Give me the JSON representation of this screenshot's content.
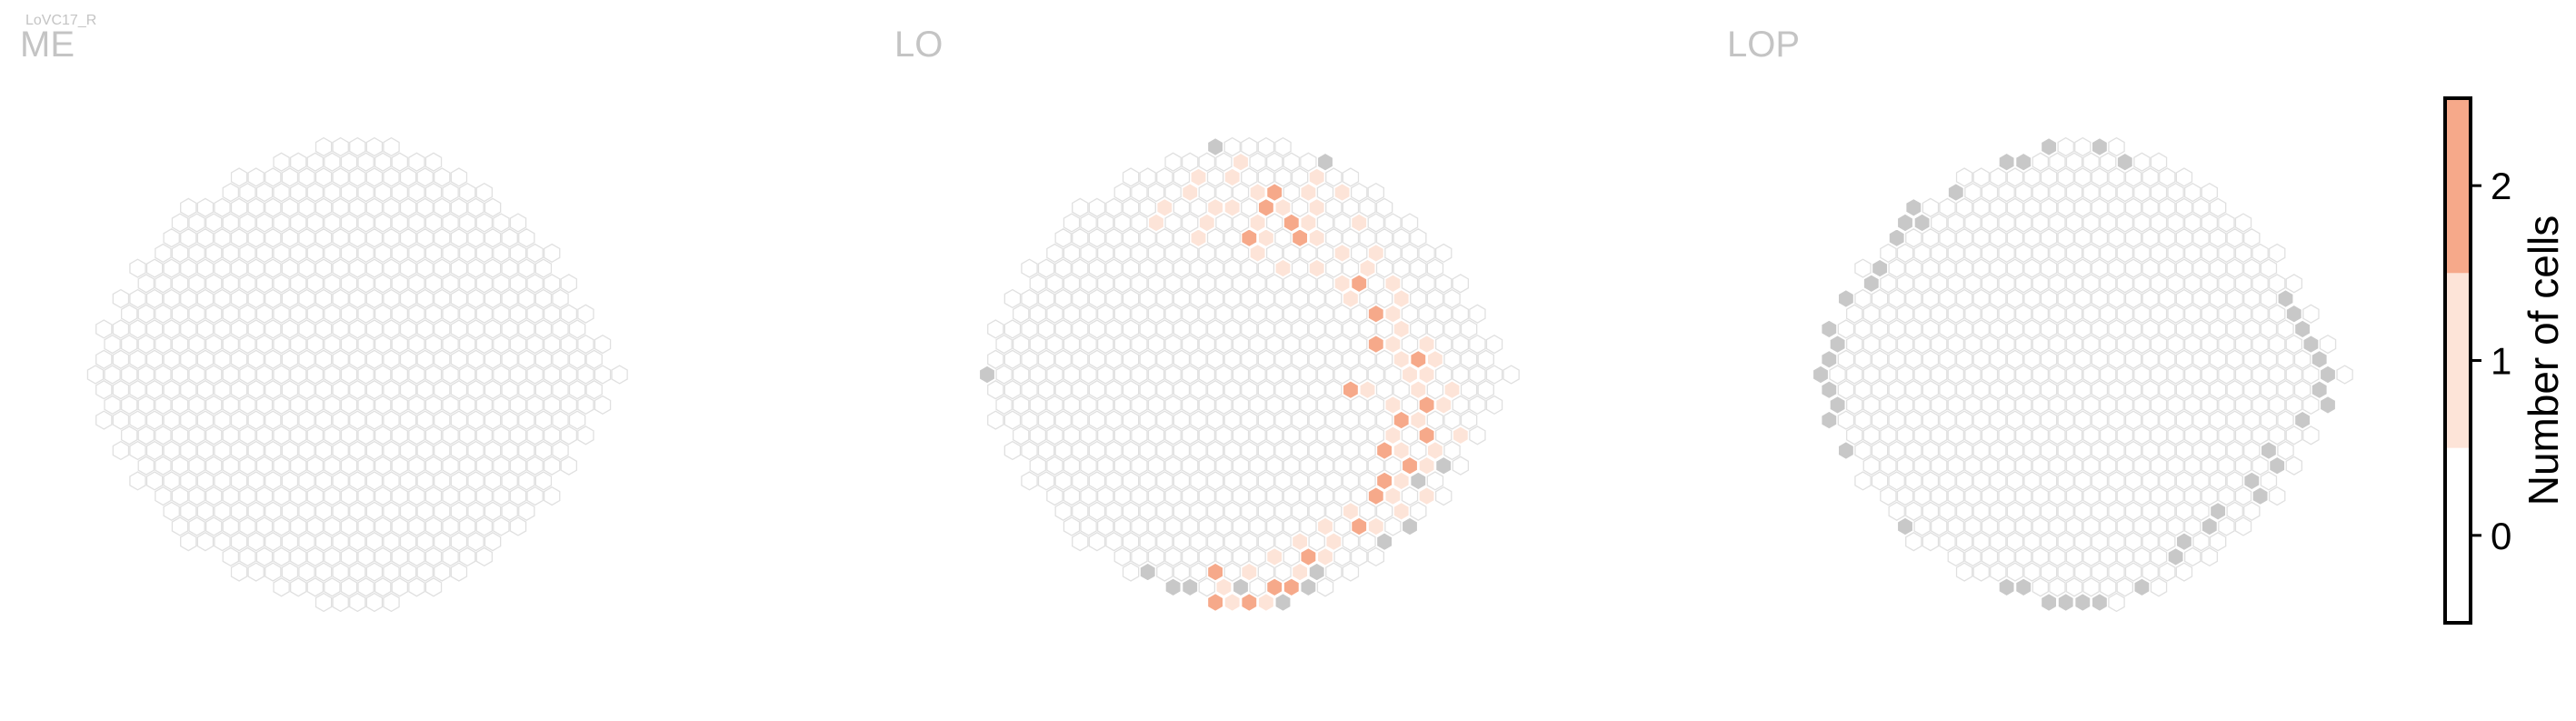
{
  "chart_data": {
    "type": "heatmap",
    "subtype": "hexagonal-column-map",
    "cell_type_label": "LoVC17_R",
    "colors": {
      "count_0": "#ffffff",
      "count_1": "#fde4d8",
      "count_2": "#f6a98a",
      "inactive": "#c8c8c8",
      "hex_edge": "#e0e0e0"
    },
    "colorbar": {
      "label": "Number of cells",
      "ticks": [
        "0",
        "1",
        "2"
      ],
      "range": [
        -0.5,
        2.5
      ]
    },
    "panels": [
      {
        "name": "ME",
        "row_extents": [
          [
            14,
            18
          ],
          [
            11,
            20
          ],
          [
            9,
            22
          ],
          [
            8,
            23
          ],
          [
            6,
            24
          ],
          [
            5,
            25
          ],
          [
            5,
            26
          ],
          [
            4,
            27
          ],
          [
            3,
            27
          ],
          [
            3,
            28
          ],
          [
            2,
            28
          ],
          [
            2,
            29
          ],
          [
            1,
            29
          ],
          [
            1,
            30
          ],
          [
            1,
            30
          ],
          [
            0,
            31
          ],
          [
            1,
            30
          ],
          [
            1,
            30
          ],
          [
            1,
            29
          ],
          [
            2,
            29
          ],
          [
            2,
            28
          ],
          [
            3,
            28
          ],
          [
            3,
            27
          ],
          [
            4,
            27
          ],
          [
            5,
            26
          ],
          [
            5,
            25
          ],
          [
            6,
            24
          ],
          [
            8,
            23
          ],
          [
            9,
            22
          ],
          [
            11,
            20
          ],
          [
            14,
            18
          ]
        ],
        "counts_1": [],
        "counts_2": [],
        "inactive": []
      },
      {
        "name": "LO",
        "row_extents": [
          [
            14,
            18
          ],
          [
            11,
            20
          ],
          [
            9,
            22
          ],
          [
            8,
            23
          ],
          [
            6,
            24
          ],
          [
            5,
            25
          ],
          [
            5,
            26
          ],
          [
            4,
            27
          ],
          [
            3,
            27
          ],
          [
            3,
            28
          ],
          [
            2,
            28
          ],
          [
            2,
            29
          ],
          [
            1,
            29
          ],
          [
            1,
            30
          ],
          [
            1,
            30
          ],
          [
            0,
            31
          ],
          [
            1,
            30
          ],
          [
            1,
            30
          ],
          [
            1,
            29
          ],
          [
            2,
            29
          ],
          [
            2,
            28
          ],
          [
            3,
            28
          ],
          [
            3,
            27
          ],
          [
            4,
            27
          ],
          [
            5,
            26
          ],
          [
            5,
            25
          ],
          [
            6,
            24
          ],
          [
            8,
            23
          ],
          [
            9,
            22
          ],
          [
            11,
            20
          ],
          [
            14,
            18
          ]
        ],
        "counts_1": [
          [
            1,
            15
          ],
          [
            2,
            13
          ],
          [
            2,
            15
          ],
          [
            2,
            20
          ],
          [
            3,
            12
          ],
          [
            3,
            16
          ],
          [
            3,
            19
          ],
          [
            3,
            21
          ],
          [
            4,
            11
          ],
          [
            4,
            14
          ],
          [
            4,
            15
          ],
          [
            4,
            18
          ],
          [
            4,
            20
          ],
          [
            5,
            10
          ],
          [
            5,
            13
          ],
          [
            5,
            16
          ],
          [
            5,
            19
          ],
          [
            5,
            22
          ],
          [
            6,
            13
          ],
          [
            6,
            17
          ],
          [
            6,
            20
          ],
          [
            7,
            16
          ],
          [
            7,
            21
          ],
          [
            7,
            23
          ],
          [
            8,
            18
          ],
          [
            8,
            20
          ],
          [
            8,
            23
          ],
          [
            9,
            21
          ],
          [
            9,
            24
          ],
          [
            10,
            22
          ],
          [
            10,
            25
          ],
          [
            11,
            24
          ],
          [
            12,
            25
          ],
          [
            13,
            24
          ],
          [
            13,
            26
          ],
          [
            14,
            25
          ],
          [
            14,
            27
          ],
          [
            15,
            25
          ],
          [
            15,
            26
          ],
          [
            16,
            23
          ],
          [
            16,
            26
          ],
          [
            16,
            28
          ],
          [
            17,
            24
          ],
          [
            17,
            27
          ],
          [
            18,
            26
          ],
          [
            19,
            24
          ],
          [
            19,
            28
          ],
          [
            20,
            25
          ],
          [
            20,
            27
          ],
          [
            21,
            26
          ],
          [
            22,
            25
          ],
          [
            23,
            24
          ],
          [
            23,
            26
          ],
          [
            24,
            22
          ],
          [
            24,
            25
          ],
          [
            25,
            20
          ],
          [
            25,
            23
          ],
          [
            26,
            19
          ],
          [
            26,
            21
          ],
          [
            27,
            17
          ],
          [
            27,
            20
          ],
          [
            28,
            16
          ],
          [
            28,
            19
          ],
          [
            29,
            14
          ],
          [
            29,
            21
          ],
          [
            30,
            15
          ],
          [
            30,
            17
          ]
        ],
        "counts_2": [
          [
            3,
            17
          ],
          [
            4,
            17
          ],
          [
            5,
            18
          ],
          [
            6,
            16
          ],
          [
            6,
            19
          ],
          [
            9,
            22
          ],
          [
            11,
            23
          ],
          [
            13,
            23
          ],
          [
            14,
            26
          ],
          [
            16,
            22
          ],
          [
            17,
            26
          ],
          [
            18,
            25
          ],
          [
            19,
            26
          ],
          [
            20,
            24
          ],
          [
            21,
            25
          ],
          [
            22,
            24
          ],
          [
            23,
            23
          ],
          [
            25,
            22
          ],
          [
            27,
            19
          ],
          [
            28,
            14
          ],
          [
            29,
            17
          ],
          [
            29,
            18
          ],
          [
            30,
            14
          ],
          [
            30,
            16
          ]
        ],
        "inactive": [
          [
            0,
            14
          ],
          [
            1,
            20
          ],
          [
            5,
            3
          ],
          [
            6,
            2
          ],
          [
            10,
            0
          ],
          [
            15,
            0
          ],
          [
            22,
            0
          ],
          [
            28,
            10
          ],
          [
            29,
            11
          ],
          [
            29,
            12
          ],
          [
            29,
            15
          ],
          [
            30,
            11
          ],
          [
            30,
            12
          ],
          [
            30,
            13
          ],
          [
            28,
            20
          ],
          [
            29,
            19
          ],
          [
            30,
            18
          ],
          [
            21,
            27
          ],
          [
            22,
            26
          ],
          [
            24,
            27
          ],
          [
            25,
            25
          ],
          [
            26,
            24
          ]
        ]
      },
      {
        "name": "LOP",
        "row_extents": [
          [
            14,
            18
          ],
          [
            11,
            20
          ],
          [
            9,
            22
          ],
          [
            8,
            23
          ],
          [
            6,
            24
          ],
          [
            5,
            25
          ],
          [
            5,
            26
          ],
          [
            4,
            27
          ],
          [
            3,
            27
          ],
          [
            3,
            28
          ],
          [
            2,
            28
          ],
          [
            2,
            29
          ],
          [
            1,
            29
          ],
          [
            1,
            30
          ],
          [
            1,
            30
          ],
          [
            0,
            31
          ],
          [
            1,
            30
          ],
          [
            1,
            30
          ],
          [
            1,
            29
          ],
          [
            2,
            29
          ],
          [
            2,
            28
          ],
          [
            3,
            28
          ],
          [
            3,
            27
          ],
          [
            4,
            27
          ],
          [
            5,
            26
          ],
          [
            5,
            25
          ],
          [
            6,
            24
          ],
          [
            8,
            23
          ],
          [
            9,
            22
          ],
          [
            11,
            20
          ],
          [
            14,
            18
          ]
        ],
        "counts_1": [],
        "counts_2": [],
        "inactive": [
          [
            0,
            14
          ],
          [
            0,
            17
          ],
          [
            1,
            11
          ],
          [
            1,
            12
          ],
          [
            1,
            18
          ],
          [
            3,
            8
          ],
          [
            4,
            6
          ],
          [
            5,
            5
          ],
          [
            5,
            6
          ],
          [
            6,
            4
          ],
          [
            6,
            5
          ],
          [
            7,
            3
          ],
          [
            8,
            4
          ],
          [
            9,
            3
          ],
          [
            10,
            2
          ],
          [
            11,
            1
          ],
          [
            12,
            1
          ],
          [
            13,
            1
          ],
          [
            14,
            1
          ],
          [
            15,
            0
          ],
          [
            16,
            1
          ],
          [
            17,
            1
          ],
          [
            18,
            1
          ],
          [
            19,
            1
          ],
          [
            20,
            2
          ],
          [
            21,
            2
          ],
          [
            22,
            2
          ],
          [
            23,
            3
          ],
          [
            24,
            3
          ],
          [
            25,
            5
          ],
          [
            26,
            5
          ],
          [
            27,
            6
          ],
          [
            28,
            8
          ],
          [
            29,
            10
          ],
          [
            29,
            11
          ],
          [
            29,
            12
          ],
          [
            30,
            13
          ],
          [
            30,
            14
          ],
          [
            30,
            15
          ],
          [
            30,
            16
          ],
          [
            30,
            17
          ],
          [
            29,
            19
          ],
          [
            10,
            28
          ],
          [
            11,
            28
          ],
          [
            12,
            29
          ],
          [
            13,
            29
          ],
          [
            14,
            30
          ],
          [
            15,
            30
          ],
          [
            16,
            30
          ],
          [
            17,
            30
          ],
          [
            18,
            29
          ],
          [
            20,
            27
          ],
          [
            21,
            27
          ],
          [
            22,
            26
          ],
          [
            23,
            26
          ],
          [
            24,
            24
          ],
          [
            25,
            23
          ],
          [
            26,
            22
          ],
          [
            27,
            21
          ]
        ]
      }
    ]
  }
}
